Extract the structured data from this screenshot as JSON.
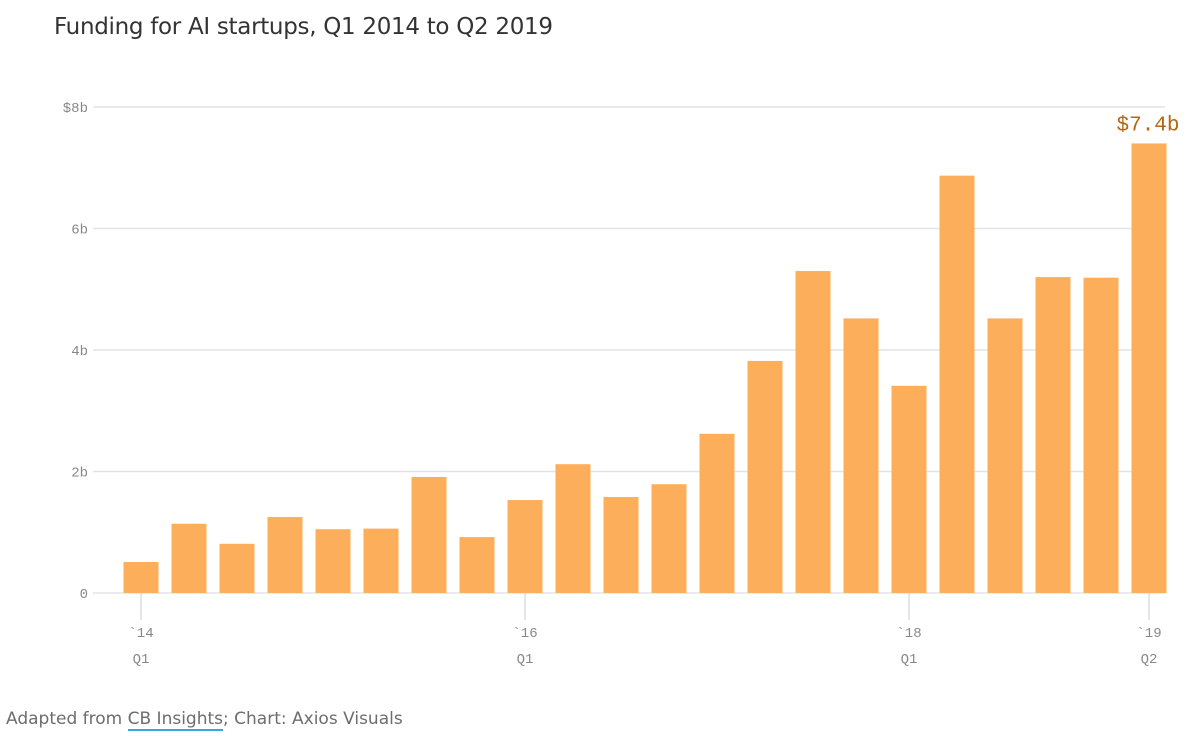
{
  "chart_data": {
    "type": "bar",
    "title": "Funding for AI startups, Q1 2014 to Q2 2019",
    "xlabel": "",
    "ylabel": "",
    "ylim": [
      0,
      8
    ],
    "unit": "billion USD",
    "grid": true,
    "bar_color": "#fdae5b",
    "annotation_color": "#b8650f",
    "categories": [
      "Q1 2014",
      "Q2 2014",
      "Q3 2014",
      "Q4 2014",
      "Q1 2015",
      "Q2 2015",
      "Q3 2015",
      "Q4 2015",
      "Q1 2016",
      "Q2 2016",
      "Q3 2016",
      "Q4 2016",
      "Q1 2017",
      "Q2 2017",
      "Q3 2017",
      "Q4 2017",
      "Q1 2018",
      "Q2 2018",
      "Q3 2018",
      "Q4 2018",
      "Q1 2019",
      "Q2 2019"
    ],
    "values": [
      0.51,
      1.14,
      0.81,
      1.25,
      1.05,
      1.06,
      1.91,
      0.92,
      1.53,
      2.12,
      1.58,
      1.79,
      2.62,
      3.82,
      5.3,
      4.52,
      3.41,
      6.87,
      4.52,
      5.2,
      5.19,
      7.4
    ],
    "y_ticks": [
      {
        "value": 0,
        "label": "0"
      },
      {
        "value": 2,
        "label": "2b"
      },
      {
        "value": 4,
        "label": "4b"
      },
      {
        "value": 6,
        "label": "6b"
      },
      {
        "value": 8,
        "label": "$8b"
      }
    ],
    "x_ticks": [
      {
        "index": 0,
        "line1": "`14",
        "line2": "Q1"
      },
      {
        "index": 8,
        "line1": "`16",
        "line2": "Q1"
      },
      {
        "index": 16,
        "line1": "`18",
        "line2": "Q1"
      },
      {
        "index": 21,
        "line1": "`19",
        "line2": "Q2"
      }
    ],
    "annotations": [
      {
        "index": 21,
        "text": "$7.4b"
      }
    ]
  },
  "source": {
    "prefix": "Adapted from ",
    "link_text": "CB Insights",
    "suffix": "; Chart: Axios Visuals"
  }
}
